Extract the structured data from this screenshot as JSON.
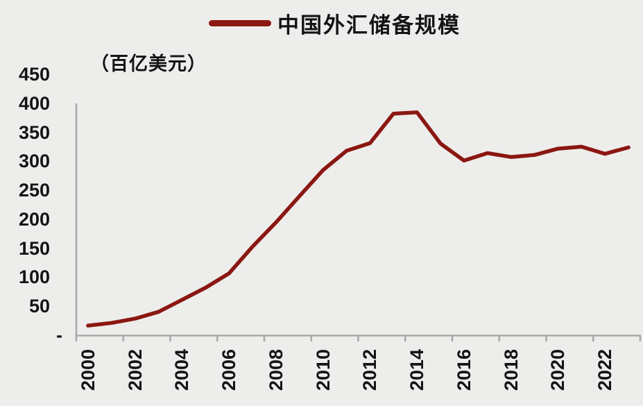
{
  "legend": {
    "label": "中国外汇储备规模"
  },
  "unit_label": "（百亿美元）",
  "colors": {
    "line": "#8B1712",
    "background": "#EDEDEB",
    "axis": "#A9A9A9",
    "text": "#141414"
  },
  "y_axis": {
    "tick_labels": [
      "450",
      "400",
      "350",
      "300",
      "250",
      "200",
      "150",
      "100",
      "50",
      "-"
    ],
    "tick_values": [
      450,
      400,
      350,
      300,
      250,
      200,
      150,
      100,
      50,
      0
    ]
  },
  "x_axis": {
    "tick_labels": [
      "2000",
      "2002",
      "2004",
      "2006",
      "2008",
      "2010",
      "2012",
      "2014",
      "2016",
      "2018",
      "2020",
      "2022"
    ]
  },
  "chart_data": {
    "type": "line",
    "title": "中国外汇储备规模",
    "unit_label": "（百亿美元）",
    "xlabel": "",
    "ylabel": "百亿美元",
    "ylim": [
      0,
      450
    ],
    "grid": false,
    "legend_position": "top-center",
    "x": [
      2000,
      2001,
      2002,
      2003,
      2004,
      2005,
      2006,
      2007,
      2008,
      2009,
      2010,
      2011,
      2012,
      2013,
      2014,
      2015,
      2016,
      2017,
      2018,
      2019,
      2020,
      2021,
      2022,
      2023
    ],
    "series": [
      {
        "name": "中国外汇储备规模",
        "color": "#8B1712",
        "values": [
          16.6,
          21.2,
          28.6,
          40.3,
          61.0,
          81.9,
          106.6,
          152.8,
          194.6,
          239.9,
          284.7,
          318.1,
          331.2,
          382.1,
          384.3,
          330.4,
          301.1,
          314.0,
          307.3,
          310.8,
          321.7,
          325.0,
          312.8,
          323.8
        ]
      }
    ]
  }
}
